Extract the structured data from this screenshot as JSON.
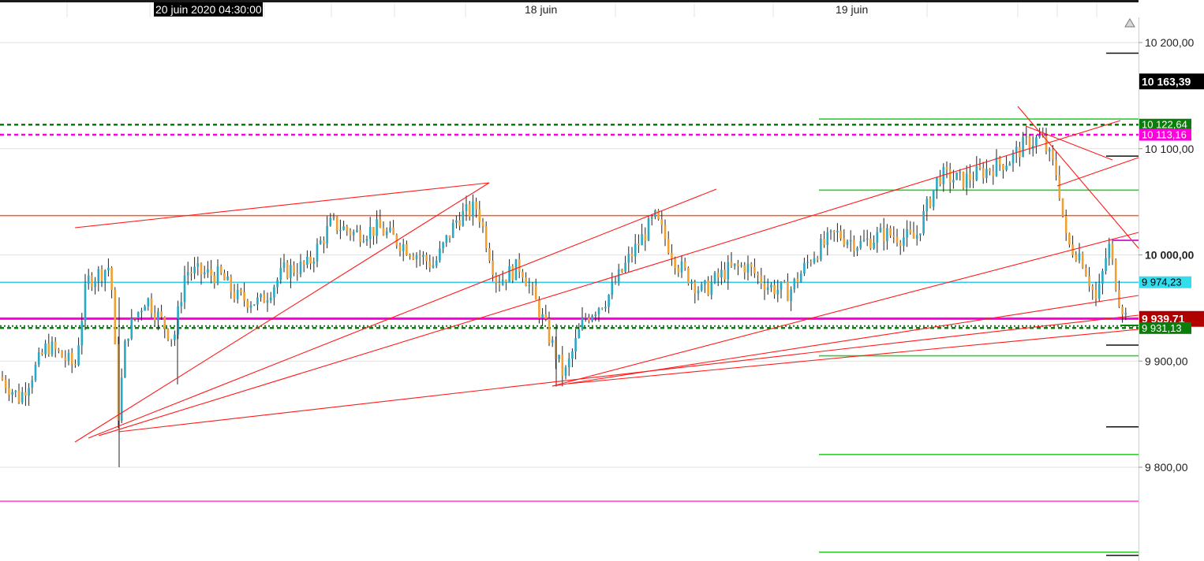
{
  "top_axis": {
    "cursor_date": "20 juin 2020 04:30:00",
    "date_labels": [
      {
        "text": "18 juin",
        "x_index": 0.47
      },
      {
        "text": "19 juin",
        "x_index": 0.75
      }
    ]
  },
  "chart_data": {
    "type": "candlestick",
    "y_axis": {
      "ticks": [
        {
          "value": 10200,
          "label": "10 200,00"
        },
        {
          "value": 10100,
          "label": "10 100,00"
        },
        {
          "value": 10000,
          "label": "10 000,00"
        },
        {
          "value": 9900,
          "label": "9 900,00"
        },
        {
          "value": 9800,
          "label": "9 800,00"
        }
      ],
      "range": [
        9715,
        10225
      ]
    },
    "price_tags": [
      {
        "value": 10163.39,
        "label": "10 163,39",
        "bg": "#000000",
        "fg": "#ffffff"
      },
      {
        "value": 10122.64,
        "label": "10 122,64",
        "bg": "#0a7d0a",
        "fg": "#ffffff"
      },
      {
        "value": 10113.16,
        "label": "10 113,16",
        "bg": "#ff00dd",
        "fg": "#ffffff"
      },
      {
        "value": 9974.23,
        "label": "9 974,23",
        "bg": "#33ddee",
        "fg": "#000000"
      },
      {
        "value": 9939.71,
        "label": "9 939,71",
        "bg": "#b00000",
        "fg": "#ffffff"
      },
      {
        "value": 9931.13,
        "label": "9 931,13",
        "bg": "#0a7d0a",
        "fg": "#ffffff"
      }
    ],
    "horizontal_lines": [
      {
        "value": 10122.64,
        "color": "#0a7d0a",
        "style": "dashed",
        "span": "full"
      },
      {
        "value": 10113.16,
        "color": "#ff00dd",
        "style": "dashed",
        "span": "full"
      },
      {
        "value": 10037,
        "color": "#ff5a1f",
        "style": "solid",
        "span": "full"
      },
      {
        "value": 9974.23,
        "color": "#33ccee",
        "style": "solid",
        "span": "full"
      },
      {
        "value": 9940,
        "color": "#ff00dd",
        "style": "solid-thick",
        "span": "full"
      },
      {
        "value": 9933,
        "color": "#0a7d0a",
        "style": "dotted",
        "span": "full"
      },
      {
        "value": 9931.13,
        "color": "#0a7d0a",
        "style": "dashed",
        "span": "full"
      },
      {
        "value": 9768,
        "color": "#ff44cc",
        "style": "solid",
        "span": "full"
      }
    ],
    "fib_levels": [
      10128,
      10061,
      9905,
      9812,
      9720
    ],
    "candle_colors": {
      "up": "#2aa8c4",
      "down": "#f0a030",
      "wick": "#222222"
    },
    "candles_ohlc_start": 9885,
    "trendline_color": "#ff1a1a",
    "trend_segments_count": 11
  }
}
